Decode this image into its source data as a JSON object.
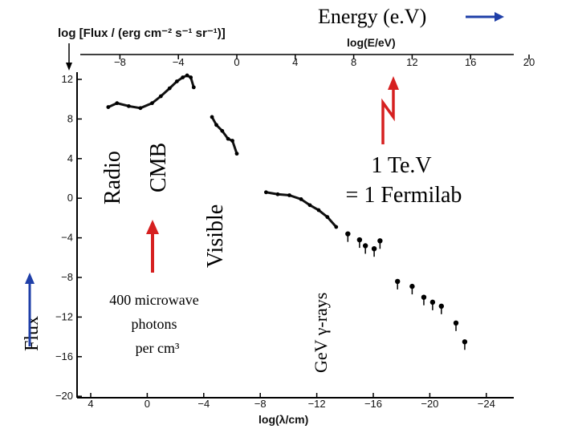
{
  "chart_data": {
    "type": "scatter",
    "y_axis_title": "log [Flux / (erg cm⁻² s⁻¹ sr⁻¹)]",
    "top_axis_title": "log(E/eV)",
    "bottom_axis_title": "log(λ/cm)",
    "energy_label": "Energy (e.V)",
    "flux_label": "Flux",
    "ylim": [
      -20,
      13
    ],
    "energy_ticks": [
      -8,
      -4,
      0,
      4,
      8,
      12,
      16,
      20
    ],
    "wavelength_ticks": [
      4,
      0,
      -4,
      -8,
      -12,
      -16,
      -20,
      -24
    ],
    "flux_ticks": [
      12,
      8,
      4,
      0,
      -4,
      -8,
      -12,
      -16,
      -20
    ],
    "band_labels": [
      {
        "name": "radio",
        "text": "Radio"
      },
      {
        "name": "cmb",
        "text": "CMB"
      },
      {
        "name": "visible",
        "text": "Visible"
      },
      {
        "name": "gev-gamma",
        "text": "GeV γ-rays"
      }
    ],
    "annotations": {
      "cmb_note": [
        "400 microwave",
        "photons",
        "per cm³"
      ],
      "tev_note": [
        "1 Te.V",
        "= 1 Fermilab"
      ]
    },
    "series": [
      {
        "name": "background-spectrum",
        "x_log_energy": [
          -8.8,
          -8.2,
          -7.4,
          -6.6,
          -5.8,
          -5.2,
          -4.6,
          -4.1,
          -3.7,
          -3.4,
          -3.15,
          -2.95
        ],
        "y_log_flux": [
          9.2,
          9.6,
          9.3,
          9.1,
          9.6,
          10.3,
          11.1,
          11.8,
          12.2,
          12.4,
          12.2,
          11.2
        ]
      },
      {
        "name": "visible-band",
        "x_log_energy": [
          -1.7,
          -1.4,
          -1.0,
          -0.6,
          -0.3,
          0.0
        ],
        "y_log_flux": [
          8.2,
          7.4,
          6.8,
          6.0,
          5.8,
          4.5
        ]
      },
      {
        "name": "xray-band",
        "x_log_energy": [
          2.0,
          2.8,
          3.6,
          4.4,
          5.0,
          5.6,
          6.2,
          6.8
        ],
        "y_log_flux": [
          0.6,
          0.4,
          0.3,
          -0.1,
          -0.7,
          -1.2,
          -1.9,
          -2.9
        ]
      },
      {
        "name": "gamma-points",
        "x_log_energy": [
          7.6,
          8.4,
          8.8,
          9.4,
          9.8,
          11.0,
          12.0,
          12.8,
          13.4,
          14.0,
          15.0,
          15.6
        ],
        "y_log_flux": [
          -3.6,
          -4.2,
          -4.8,
          -5.1,
          -4.3,
          -8.4,
          -8.9,
          -10.0,
          -10.5,
          -10.9,
          -12.6,
          -14.5
        ]
      }
    ]
  }
}
